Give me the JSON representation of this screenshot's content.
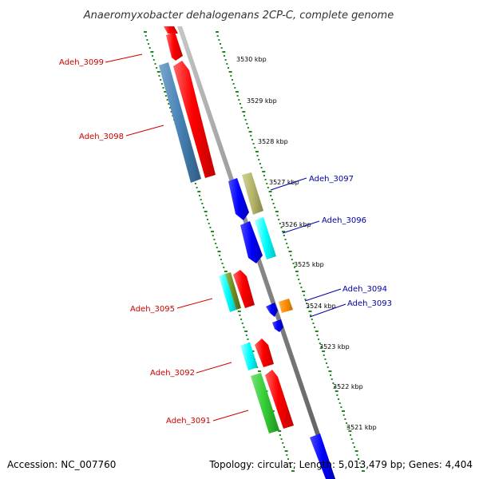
{
  "title": "Anaeromyxobacter dehalogenans 2CP-C, complete genome",
  "footer": {
    "accession": "Accession: NC_007760",
    "summary": "Topology: circular; Length: 5,013,479 bp; Genes: 4,404"
  },
  "colors": {
    "axis": "#8a8a8a",
    "tick": "#1e8a1e",
    "forward_label": "#cc0000",
    "reverse_label": "#0000aa"
  },
  "scale_labels": [
    "3530 kbp",
    "3529 kbp",
    "3528 kbp",
    "3527 kbp",
    "3526 kbp",
    "3525 kbp",
    "3524 kbp",
    "3523 kbp",
    "3522 kbp",
    "3521 kbp"
  ],
  "genes": [
    {
      "label": "Adeh_3099",
      "strand": "forward",
      "color": "#ff0000"
    },
    {
      "label": "Adeh_3098",
      "strand": "forward",
      "color": "#4682b4"
    },
    {
      "label": "Adeh_3097",
      "strand": "reverse",
      "color": "#b5b56a"
    },
    {
      "label": "Adeh_3096",
      "strand": "reverse",
      "color": "#00ffff"
    },
    {
      "label": "Adeh_3095",
      "strand": "forward",
      "color": "#6b8e23"
    },
    {
      "label": "Adeh_3094",
      "strand": "reverse",
      "color": "#ff8c00"
    },
    {
      "label": "Adeh_3093",
      "strand": "reverse",
      "color": "#0000ff"
    },
    {
      "label": "Adeh_3092",
      "strand": "forward",
      "color": "#00ffff"
    },
    {
      "label": "Adeh_3091",
      "strand": "forward",
      "color": "#32cd32"
    }
  ]
}
